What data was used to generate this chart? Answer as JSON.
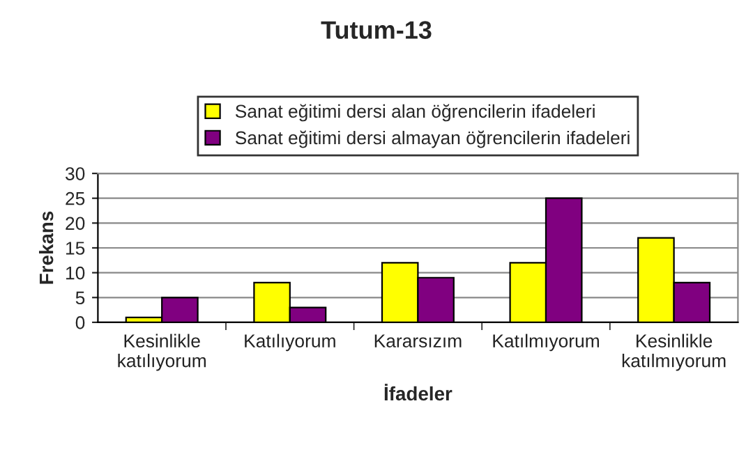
{
  "chart_data": {
    "type": "bar",
    "title": "Tutum-13",
    "xlabel": "İfadeler",
    "ylabel": "Frekans",
    "categories": [
      "Kesinlikle\nkatılıyorum",
      "Katılıyorum",
      "Kararsızım",
      "Katılmıyorum",
      "Kesinlikle\nkatılmıyorum"
    ],
    "series": [
      {
        "name": "Sanat eğitimi dersi alan öğrencilerin ifadeleri",
        "color": "#ffff00",
        "values": [
          1,
          8,
          12,
          12,
          17
        ]
      },
      {
        "name": "Sanat eğitimi dersi almayan öğrencilerin ifadeleri",
        "color": "#800080",
        "values": [
          5,
          3,
          9,
          25,
          8
        ]
      }
    ],
    "ylim": [
      0,
      30
    ],
    "yticks": [
      0,
      5,
      10,
      15,
      20,
      25,
      30
    ],
    "grid": "y",
    "legend": "top"
  }
}
